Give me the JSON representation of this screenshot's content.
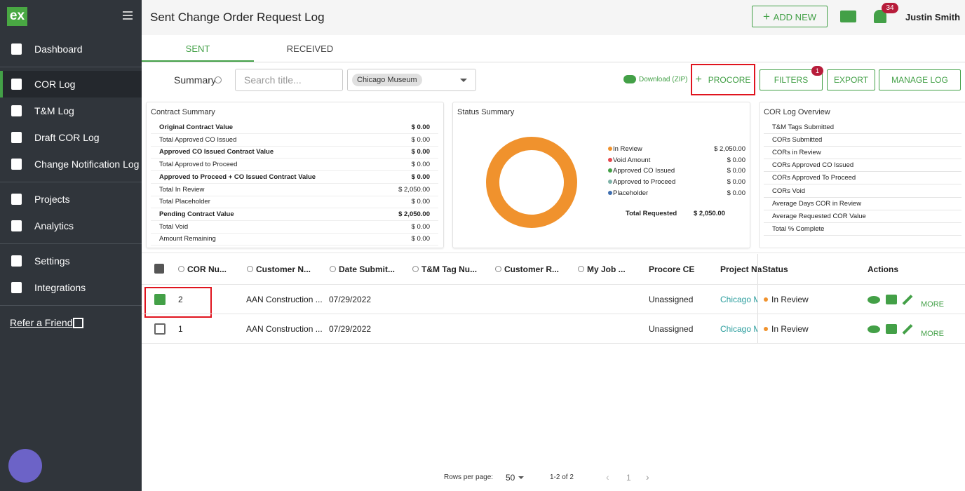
{
  "sidebar": {
    "logo": "ex",
    "nav": [
      {
        "label": "Dashboard",
        "active": false
      },
      {
        "label": "COR Log",
        "active": true
      },
      {
        "label": "T&M Log",
        "active": false
      },
      {
        "label": "Draft COR Log",
        "active": false
      },
      {
        "label": "Change Notification Log",
        "active": false
      },
      {
        "label": "Projects",
        "active": false
      },
      {
        "label": "Analytics",
        "active": false
      },
      {
        "label": "Settings",
        "active": false
      },
      {
        "label": "Integrations",
        "active": false
      }
    ],
    "refer": "Refer a Friend"
  },
  "header": {
    "title": "Sent Change Order Request Log",
    "add_new": "ADD NEW",
    "notifications": "34",
    "user": "Justin Smith"
  },
  "tabs": [
    {
      "label": "SENT",
      "active": true
    },
    {
      "label": "RECEIVED",
      "active": false
    }
  ],
  "toolbar": {
    "summary": "Summary",
    "search_placeholder": "Search title...",
    "project": "Chicago Museum",
    "download": "Download (ZIP)",
    "procore": "PROCORE",
    "filters": "FILTERS",
    "filters_badge": "1",
    "export": "EXPORT",
    "manage": "MANAGE LOG"
  },
  "contract_summary": {
    "title": "Contract Summary",
    "rows": [
      {
        "label": "Original Contract Value",
        "value": "$ 0.00",
        "bold": true
      },
      {
        "label": "Total Approved CO Issued",
        "value": "$ 0.00",
        "bold": false
      },
      {
        "label": "Approved CO Issued Contract Value",
        "value": "$ 0.00",
        "bold": true
      },
      {
        "label": "Total Approved to Proceed",
        "value": "$ 0.00",
        "bold": false
      },
      {
        "label": "Approved to Proceed + CO Issued Contract Value",
        "value": "$ 0.00",
        "bold": true
      },
      {
        "label": "Total In Review",
        "value": "$ 2,050.00",
        "bold": false
      },
      {
        "label": "Total Placeholder",
        "value": "$ 0.00",
        "bold": false
      },
      {
        "label": "Pending Contract Value",
        "value": "$ 2,050.00",
        "bold": true
      },
      {
        "label": "Total Void",
        "value": "$ 0.00",
        "bold": false
      },
      {
        "label": "Amount Remaining",
        "value": "$ 0.00",
        "bold": false
      }
    ]
  },
  "status_summary": {
    "title": "Status Summary",
    "items": [
      {
        "name": "In Review",
        "color": "#f0922d",
        "amount": 2050,
        "amount_label": "$ 2,050.00"
      },
      {
        "name": "Void Amount",
        "color": "#e5484d",
        "amount": 0,
        "amount_label": "$ 0.00"
      },
      {
        "name": "Approved CO Issued",
        "color": "#43a047",
        "amount": 0,
        "amount_label": "$ 0.00"
      },
      {
        "name": "Approved to Proceed",
        "color": "#7fb3a8",
        "amount": 0,
        "amount_label": "$ 0.00"
      },
      {
        "name": "Placeholder",
        "color": "#3f6fb0",
        "amount": 0,
        "amount_label": "$ 0.00"
      }
    ],
    "total_label": "Total Requested",
    "total": "$ 2,050.00"
  },
  "cor_overview": {
    "title": "COR Log Overview",
    "items": [
      "T&M Tags Submitted",
      "CORs Submitted",
      "CORs in Review",
      "CORs Approved CO Issued",
      "CORs Approved To Proceed",
      "CORs Void",
      "Average Days COR in Review",
      "Average Requested COR Value",
      "Total % Complete"
    ]
  },
  "table": {
    "columns": [
      "COR Nu...",
      "Customer N...",
      "Date Submit...",
      "T&M Tag Nu...",
      "Customer R...",
      "My Job ...",
      "Procore CE",
      "Project Na",
      "Status",
      "Actions"
    ],
    "rows": [
      {
        "checked": true,
        "cor": "2",
        "customer": "AAN Construction ...",
        "date": "07/29/2022",
        "procore": "Unassigned",
        "project": "Chicago M",
        "status": "In Review",
        "more": "MORE"
      },
      {
        "checked": false,
        "cor": "1",
        "customer": "AAN Construction ...",
        "date": "07/29/2022",
        "procore": "Unassigned",
        "project": "Chicago M",
        "status": "In Review",
        "more": "MORE"
      }
    ]
  },
  "pagination": {
    "rows_per_page": "Rows per page:",
    "per_page": "50",
    "range": "1-2 of 2",
    "page": "1"
  }
}
